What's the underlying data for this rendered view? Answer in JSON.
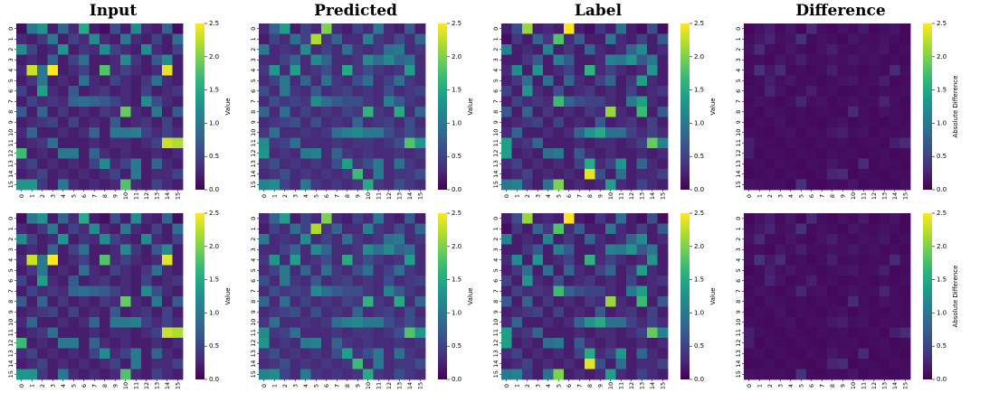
{
  "column_titles": [
    "Input",
    "Predicted",
    "Label",
    "Difference"
  ],
  "colorbar": {
    "value_label": "Value",
    "difference_label": "Absolute Difference",
    "ticks": [
      "0.0",
      "0.5",
      "1.0",
      "1.5",
      "2.0",
      "2.5"
    ],
    "colormap": [
      "#440154",
      "#482878",
      "#3e4989",
      "#31688e",
      "#26828e",
      "#1f9e89",
      "#35b779",
      "#6ece58",
      "#b5de2b",
      "#fde725"
    ]
  },
  "chart_data": [
    {
      "type": "heatmap",
      "title": "Input",
      "colorbar_label": "Value",
      "vmin": 0,
      "vmax": 2.5,
      "xticks": [
        "0",
        "1",
        "2",
        "3",
        "4",
        "5",
        "6",
        "7",
        "8",
        "9",
        "10",
        "11",
        "12",
        "13",
        "14",
        "15"
      ],
      "yticks": [
        "0",
        "1",
        "2",
        "3",
        "4",
        "5",
        "6",
        "7",
        "8",
        "9",
        "10",
        "11",
        "12",
        "13",
        "14",
        "15"
      ],
      "values": [
        [
          0.1,
          1.0,
          1.3,
          0.2,
          0.8,
          0.3,
          1.5,
          0.2,
          0.1,
          0.6,
          0.2,
          1.2,
          0.3,
          0.2,
          0.8,
          0.1
        ],
        [
          0.3,
          0.2,
          0.4,
          1.0,
          0.2,
          0.5,
          0.3,
          1.2,
          0.3,
          0.2,
          1.0,
          0.3,
          0.2,
          0.5,
          0.2,
          0.9
        ],
        [
          1.2,
          0.5,
          0.2,
          0.3,
          1.3,
          0.2,
          0.4,
          0.3,
          1.2,
          0.5,
          0.3,
          0.2,
          1.2,
          0.3,
          0.2,
          0.5
        ],
        [
          0.2,
          0.3,
          0.2,
          0.8,
          0.2,
          0.5,
          0.9,
          0.2,
          0.2,
          0.3,
          1.2,
          0.4,
          0.2,
          0.7,
          1.2,
          0.2
        ],
        [
          0.3,
          2.3,
          1.0,
          2.5,
          0.2,
          0.3,
          0.5,
          0.2,
          1.8,
          0.3,
          0.5,
          0.3,
          0.2,
          0.3,
          2.4,
          0.2
        ],
        [
          0.2,
          0.4,
          1.0,
          0.2,
          0.3,
          0.2,
          0.9,
          0.3,
          0.2,
          0.5,
          0.3,
          0.2,
          0.4,
          0.9,
          0.3,
          0.2
        ],
        [
          0.5,
          0.2,
          1.4,
          0.3,
          0.2,
          0.7,
          0.2,
          0.3,
          0.4,
          0.2,
          0.3,
          0.2,
          0.5,
          0.2,
          0.3,
          0.4
        ],
        [
          0.2,
          0.5,
          0.3,
          0.4,
          0.3,
          0.8,
          0.9,
          0.8,
          0.7,
          0.5,
          0.3,
          0.2,
          1.2,
          0.6,
          0.3,
          0.2
        ],
        [
          0.7,
          0.2,
          0.8,
          0.2,
          0.4,
          0.2,
          0.3,
          0.2,
          0.4,
          0.3,
          1.9,
          0.3,
          0.2,
          1.0,
          0.2,
          0.7
        ],
        [
          0.2,
          0.3,
          0.4,
          0.5,
          0.2,
          0.5,
          0.2,
          0.3,
          0.2,
          0.7,
          0.2,
          0.3,
          0.4,
          0.2,
          0.5,
          0.2
        ],
        [
          0.3,
          0.8,
          0.2,
          0.2,
          0.3,
          0.2,
          0.3,
          0.8,
          0.2,
          1.0,
          1.0,
          1.1,
          0.5,
          0.3,
          0.5,
          0.3
        ],
        [
          0.2,
          0.3,
          0.4,
          0.9,
          0.2,
          0.2,
          0.2,
          0.3,
          0.2,
          0.3,
          0.3,
          0.2,
          0.3,
          0.5,
          2.3,
          2.2
        ],
        [
          1.7,
          0.2,
          0.3,
          0.2,
          1.0,
          1.0,
          0.2,
          0.8,
          0.3,
          0.2,
          0.3,
          0.2,
          0.2,
          0.3,
          0.2,
          0.3
        ],
        [
          0.3,
          0.5,
          0.2,
          0.3,
          0.2,
          0.3,
          0.2,
          0.5,
          1.2,
          0.3,
          0.5,
          1.0,
          0.2,
          0.8,
          0.3,
          0.2
        ],
        [
          0.2,
          0.3,
          0.5,
          0.2,
          0.3,
          0.2,
          0.3,
          0.2,
          0.3,
          0.5,
          0.2,
          1.0,
          0.2,
          0.3,
          0.3,
          0.5
        ],
        [
          1.3,
          1.3,
          0.4,
          0.2,
          1.0,
          0.3,
          0.2,
          0.3,
          0.2,
          0.3,
          1.8,
          0.3,
          0.2,
          0.5,
          0.3,
          0.2
        ]
      ]
    },
    {
      "type": "heatmap",
      "title": "Predicted",
      "colorbar_label": "Value",
      "vmin": 0,
      "vmax": 2.5,
      "xticks": [
        "0",
        "1",
        "2",
        "3",
        "4",
        "5",
        "6",
        "7",
        "8",
        "9",
        "10",
        "11",
        "12",
        "13",
        "14",
        "15"
      ],
      "yticks": [
        "0",
        "1",
        "2",
        "3",
        "4",
        "5",
        "6",
        "7",
        "8",
        "9",
        "10",
        "11",
        "12",
        "13",
        "14",
        "15"
      ],
      "values": [
        [
          0.3,
          0.8,
          1.4,
          0.2,
          0.5,
          0.3,
          2.0,
          0.3,
          0.2,
          0.5,
          0.3,
          1.0,
          0.3,
          0.2,
          0.7,
          0.2
        ],
        [
          0.2,
          0.5,
          0.3,
          0.9,
          0.5,
          2.2,
          0.4,
          0.8,
          0.3,
          0.3,
          1.1,
          0.4,
          0.3,
          0.6,
          0.3,
          0.8
        ],
        [
          1.0,
          0.3,
          0.4,
          0.3,
          1.2,
          0.3,
          0.5,
          0.3,
          0.9,
          0.4,
          0.3,
          0.4,
          0.9,
          1.0,
          0.3,
          0.4
        ],
        [
          0.3,
          0.3,
          0.5,
          0.8,
          0.3,
          1.2,
          0.8,
          0.3,
          0.3,
          0.4,
          1.2,
          0.9,
          1.2,
          0.8,
          0.9,
          0.3
        ],
        [
          0.4,
          1.3,
          0.3,
          1.4,
          0.3,
          0.4,
          0.6,
          0.3,
          1.5,
          0.4,
          0.6,
          0.4,
          0.3,
          0.4,
          1.4,
          0.3
        ],
        [
          0.3,
          0.5,
          1.0,
          0.3,
          0.8,
          0.3,
          0.9,
          0.4,
          0.3,
          0.6,
          0.9,
          0.3,
          0.5,
          0.9,
          0.4,
          0.3
        ],
        [
          0.6,
          0.3,
          1.0,
          0.4,
          0.3,
          0.7,
          0.3,
          0.4,
          0.5,
          0.3,
          0.4,
          0.3,
          0.6,
          0.3,
          0.4,
          0.5
        ],
        [
          0.3,
          0.6,
          0.4,
          0.5,
          0.4,
          1.2,
          0.9,
          0.7,
          0.6,
          0.6,
          0.4,
          0.3,
          1.1,
          0.7,
          0.4,
          0.3
        ],
        [
          0.8,
          0.3,
          0.9,
          0.3,
          0.5,
          0.3,
          0.4,
          0.3,
          0.5,
          0.4,
          1.6,
          0.4,
          0.3,
          1.5,
          0.3,
          0.8
        ],
        [
          0.3,
          0.4,
          0.5,
          0.6,
          0.3,
          0.6,
          0.3,
          0.4,
          0.3,
          0.8,
          0.3,
          0.4,
          0.5,
          0.3,
          0.6,
          0.3
        ],
        [
          0.4,
          0.9,
          0.3,
          0.3,
          0.4,
          0.3,
          0.4,
          0.9,
          1.1,
          1.2,
          1.0,
          1.0,
          0.6,
          0.4,
          0.6,
          0.4
        ],
        [
          1.2,
          0.4,
          0.5,
          0.9,
          0.3,
          0.3,
          0.3,
          0.4,
          0.3,
          0.4,
          0.4,
          0.3,
          0.4,
          0.6,
          1.8,
          1.3
        ],
        [
          1.3,
          0.3,
          0.4,
          0.3,
          1.0,
          1.1,
          0.3,
          0.8,
          0.4,
          0.3,
          0.4,
          0.3,
          0.3,
          0.4,
          0.3,
          0.4
        ],
        [
          0.4,
          0.6,
          0.3,
          0.4,
          0.3,
          0.4,
          0.3,
          0.6,
          1.4,
          0.4,
          0.6,
          1.0,
          0.3,
          0.9,
          0.4,
          0.3
        ],
        [
          0.3,
          0.4,
          0.6,
          0.3,
          0.4,
          0.3,
          0.4,
          0.3,
          0.4,
          1.7,
          0.3,
          1.0,
          0.3,
          0.4,
          0.4,
          0.6
        ],
        [
          1.1,
          1.2,
          0.5,
          0.3,
          1.0,
          0.4,
          0.3,
          0.4,
          0.3,
          0.4,
          1.5,
          0.4,
          0.3,
          0.6,
          0.4,
          0.3
        ]
      ]
    },
    {
      "type": "heatmap",
      "title": "Label",
      "colorbar_label": "Value",
      "vmin": 0,
      "vmax": 2.5,
      "xticks": [
        "0",
        "1",
        "2",
        "3",
        "4",
        "5",
        "6",
        "7",
        "8",
        "9",
        "10",
        "11",
        "12",
        "13",
        "14",
        "15"
      ],
      "yticks": [
        "0",
        "1",
        "2",
        "3",
        "4",
        "5",
        "6",
        "7",
        "8",
        "9",
        "10",
        "11",
        "12",
        "13",
        "14",
        "15"
      ],
      "values": [
        [
          0.2,
          0.6,
          2.1,
          0.2,
          0.3,
          0.2,
          2.5,
          0.2,
          0.1,
          0.4,
          0.2,
          0.9,
          0.2,
          0.1,
          0.6,
          0.1
        ],
        [
          0.1,
          0.4,
          0.2,
          0.8,
          0.4,
          1.8,
          0.3,
          0.7,
          0.2,
          0.2,
          1.0,
          0.3,
          0.2,
          0.5,
          0.2,
          0.7
        ],
        [
          1.1,
          0.2,
          0.3,
          0.2,
          1.1,
          0.2,
          0.4,
          0.2,
          0.8,
          0.3,
          0.2,
          0.3,
          0.8,
          1.2,
          0.2,
          0.3
        ],
        [
          0.2,
          0.2,
          0.4,
          0.7,
          0.2,
          1.1,
          0.7,
          0.2,
          0.2,
          0.3,
          1.1,
          1.0,
          1.3,
          0.7,
          1.0,
          0.2
        ],
        [
          0.3,
          1.2,
          0.2,
          1.3,
          0.2,
          0.3,
          0.5,
          0.2,
          1.6,
          0.3,
          0.5,
          0.3,
          0.2,
          0.3,
          1.3,
          0.2
        ],
        [
          0.2,
          0.4,
          0.9,
          0.2,
          0.9,
          0.2,
          0.8,
          0.3,
          0.2,
          0.5,
          0.8,
          0.2,
          0.4,
          1.4,
          0.3,
          0.2
        ],
        [
          0.5,
          0.2,
          1.3,
          0.3,
          0.2,
          0.6,
          0.2,
          0.3,
          0.4,
          0.2,
          0.3,
          0.2,
          0.5,
          0.2,
          0.3,
          0.4
        ],
        [
          0.2,
          0.5,
          0.3,
          0.4,
          0.3,
          1.7,
          0.8,
          0.6,
          0.5,
          0.5,
          0.3,
          0.2,
          1.0,
          1.4,
          0.3,
          0.2
        ],
        [
          0.7,
          0.2,
          0.8,
          0.2,
          0.4,
          0.2,
          0.3,
          0.2,
          0.4,
          0.3,
          2.1,
          0.3,
          0.2,
          1.7,
          0.2,
          0.7
        ],
        [
          0.2,
          0.3,
          0.4,
          0.5,
          0.2,
          0.5,
          0.2,
          0.3,
          0.2,
          0.7,
          0.2,
          0.3,
          0.4,
          0.2,
          0.5,
          0.2
        ],
        [
          0.3,
          0.8,
          0.2,
          0.2,
          0.3,
          0.2,
          0.3,
          0.8,
          1.3,
          1.5,
          0.9,
          0.9,
          0.5,
          0.3,
          0.5,
          0.3
        ],
        [
          1.4,
          0.3,
          0.4,
          0.8,
          0.2,
          0.2,
          0.2,
          0.3,
          0.2,
          0.3,
          0.3,
          0.2,
          0.3,
          0.5,
          1.9,
          1.1
        ],
        [
          1.4,
          0.2,
          0.3,
          0.2,
          0.9,
          1.0,
          0.2,
          0.7,
          0.3,
          0.2,
          0.3,
          0.2,
          0.2,
          0.3,
          0.2,
          0.3
        ],
        [
          0.3,
          0.5,
          0.2,
          0.3,
          0.2,
          0.3,
          0.2,
          0.5,
          1.5,
          0.3,
          0.5,
          1.3,
          0.2,
          0.8,
          0.3,
          0.2
        ],
        [
          0.2,
          0.3,
          0.5,
          0.2,
          0.3,
          0.2,
          0.3,
          0.2,
          2.4,
          0.6,
          0.2,
          0.9,
          0.2,
          0.3,
          0.3,
          0.5
        ],
        [
          1.0,
          1.1,
          0.4,
          0.2,
          0.9,
          2.0,
          0.2,
          0.3,
          0.2,
          0.3,
          1.4,
          0.3,
          0.2,
          0.5,
          0.3,
          0.2
        ]
      ]
    },
    {
      "type": "heatmap",
      "title": "Difference",
      "colorbar_label": "Absolute Difference",
      "vmin": 0,
      "vmax": 2.5,
      "xticks": [
        "0",
        "1",
        "2",
        "3",
        "4",
        "5",
        "6",
        "7",
        "8",
        "9",
        "10",
        "11",
        "12",
        "13",
        "14",
        "15"
      ],
      "yticks": [
        "0",
        "1",
        "2",
        "3",
        "4",
        "5",
        "6",
        "7",
        "8",
        "9",
        "10",
        "11",
        "12",
        "13",
        "14",
        "15"
      ],
      "values": [
        [
          0.05,
          0.12,
          0.2,
          0.08,
          0.15,
          0.06,
          0.3,
          0.1,
          0.05,
          0.12,
          0.08,
          0.18,
          0.06,
          0.1,
          0.14,
          0.05
        ],
        [
          0.1,
          0.15,
          0.25,
          0.1,
          0.12,
          0.35,
          0.08,
          0.12,
          0.1,
          0.06,
          0.15,
          0.1,
          0.08,
          0.12,
          0.1,
          0.06
        ],
        [
          0.12,
          0.3,
          0.1,
          0.08,
          0.15,
          0.1,
          0.06,
          0.12,
          0.2,
          0.1,
          0.08,
          0.12,
          0.1,
          0.15,
          0.06,
          0.1
        ],
        [
          0.08,
          0.1,
          0.06,
          0.15,
          0.1,
          0.2,
          0.1,
          0.08,
          0.12,
          0.1,
          0.15,
          0.1,
          0.12,
          0.08,
          0.1,
          0.06
        ],
        [
          0.1,
          0.35,
          0.15,
          0.3,
          0.08,
          0.1,
          0.06,
          0.1,
          0.2,
          0.08,
          0.1,
          0.06,
          0.1,
          0.08,
          0.3,
          0.1
        ],
        [
          0.06,
          0.1,
          0.2,
          0.1,
          0.15,
          0.08,
          0.1,
          0.06,
          0.1,
          0.12,
          0.15,
          0.08,
          0.1,
          0.2,
          0.06,
          0.08
        ],
        [
          0.1,
          0.08,
          0.25,
          0.12,
          0.06,
          0.1,
          0.2,
          0.08,
          0.1,
          0.06,
          0.08,
          0.1,
          0.06,
          0.1,
          0.08,
          0.1
        ],
        [
          0.08,
          0.12,
          0.1,
          0.06,
          0.1,
          0.25,
          0.1,
          0.12,
          0.06,
          0.1,
          0.12,
          0.08,
          0.1,
          0.25,
          0.1,
          0.06
        ],
        [
          0.1,
          0.06,
          0.12,
          0.1,
          0.08,
          0.1,
          0.06,
          0.1,
          0.08,
          0.06,
          0.3,
          0.1,
          0.06,
          0.12,
          0.1,
          0.08
        ],
        [
          0.06,
          0.1,
          0.08,
          0.12,
          0.06,
          0.1,
          0.08,
          0.06,
          0.1,
          0.12,
          0.06,
          0.1,
          0.08,
          0.06,
          0.1,
          0.08
        ],
        [
          0.1,
          0.08,
          0.06,
          0.1,
          0.12,
          0.06,
          0.1,
          0.08,
          0.15,
          0.2,
          0.1,
          0.12,
          0.06,
          0.1,
          0.08,
          0.1
        ],
        [
          0.2,
          0.1,
          0.08,
          0.06,
          0.1,
          0.08,
          0.06,
          0.1,
          0.08,
          0.1,
          0.06,
          0.08,
          0.1,
          0.06,
          0.2,
          0.3
        ],
        [
          0.2,
          0.06,
          0.1,
          0.08,
          0.06,
          0.1,
          0.08,
          0.06,
          0.1,
          0.08,
          0.1,
          0.06,
          0.08,
          0.1,
          0.06,
          0.08
        ],
        [
          0.08,
          0.1,
          0.06,
          0.1,
          0.08,
          0.06,
          0.1,
          0.08,
          0.15,
          0.1,
          0.08,
          0.3,
          0.06,
          0.1,
          0.08,
          0.06
        ],
        [
          0.06,
          0.08,
          0.1,
          0.06,
          0.1,
          0.08,
          0.06,
          0.1,
          0.25,
          0.3,
          0.06,
          0.1,
          0.08,
          0.06,
          0.1,
          0.08
        ],
        [
          0.12,
          0.1,
          0.08,
          0.1,
          0.06,
          0.35,
          0.08,
          0.06,
          0.1,
          0.08,
          0.15,
          0.06,
          0.1,
          0.08,
          0.06,
          0.1
        ]
      ]
    }
  ]
}
